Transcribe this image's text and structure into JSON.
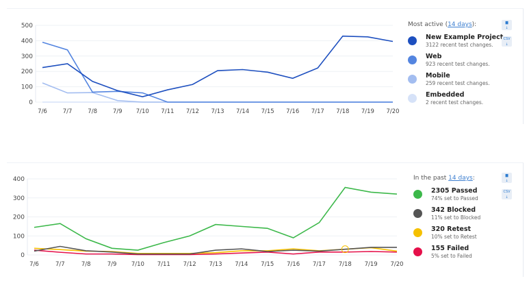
{
  "chart_data": [
    {
      "type": "line",
      "categories": [
        "7/6",
        "7/7",
        "7/8",
        "7/9",
        "7/10",
        "7/11",
        "7/12",
        "7/13",
        "7/14",
        "7/15",
        "7/16",
        "7/17",
        "7/18",
        "7/19",
        "7/20"
      ],
      "ylim": [
        0,
        500
      ],
      "yticks": [
        "0",
        "100",
        "200",
        "300",
        "400",
        "500"
      ],
      "series": [
        {
          "name": "New Example Project",
          "color": "#1d4fbf",
          "values": [
            225,
            250,
            135,
            75,
            35,
            80,
            115,
            205,
            212,
            195,
            155,
            222,
            430,
            425,
            395
          ]
        },
        {
          "name": "Web",
          "color": "#5485e0",
          "values": [
            390,
            340,
            65,
            70,
            60,
            0,
            0,
            0,
            0,
            0,
            0,
            0,
            0,
            0,
            0
          ]
        },
        {
          "name": "Mobile",
          "color": "#a3bdf0",
          "values": [
            125,
            60,
            62,
            10,
            0,
            0,
            0,
            0,
            0,
            0,
            0,
            0,
            0,
            0,
            0
          ]
        },
        {
          "name": "Embedded",
          "color": "#d6e2f8",
          "values": [
            0,
            0,
            0,
            0,
            0,
            0,
            0,
            0,
            0,
            0,
            0,
            0,
            0,
            0,
            0
          ]
        }
      ]
    },
    {
      "type": "line",
      "categories": [
        "7/6",
        "7/7",
        "7/8",
        "7/9",
        "7/10",
        "7/11",
        "7/12",
        "7/13",
        "7/14",
        "7/15",
        "7/16",
        "7/17",
        "7/18",
        "7/19",
        "7/20"
      ],
      "ylim": [
        0,
        400
      ],
      "yticks": [
        "0",
        "100",
        "200",
        "300",
        "400"
      ],
      "series": [
        {
          "name": "Passed",
          "color": "#3cb84a",
          "values": [
            145,
            165,
            85,
            35,
            25,
            65,
            100,
            160,
            150,
            140,
            90,
            170,
            355,
            330,
            320
          ]
        },
        {
          "name": "Blocked",
          "color": "#555555",
          "values": [
            20,
            45,
            22,
            15,
            5,
            5,
            5,
            25,
            32,
            18,
            25,
            20,
            30,
            40,
            40
          ]
        },
        {
          "name": "Retest",
          "color": "#f5c000",
          "values": [
            35,
            28,
            20,
            18,
            8,
            8,
            8,
            12,
            22,
            22,
            32,
            22,
            30,
            38,
            20
          ]
        },
        {
          "name": "Failed",
          "color": "#e5104a",
          "values": [
            25,
            14,
            5,
            5,
            2,
            2,
            2,
            5,
            10,
            15,
            5,
            15,
            15,
            18,
            15
          ]
        }
      ]
    }
  ],
  "legend1": {
    "prefix": "Most active (",
    "link": "14 days",
    "suffix": "):",
    "items": [
      {
        "name": "New Example Project",
        "sub": "3122 recent test changes."
      },
      {
        "name": "Web",
        "sub": "923 recent test changes."
      },
      {
        "name": "Mobile",
        "sub": "259 recent test changes."
      },
      {
        "name": "Embedded",
        "sub": "2 recent test changes."
      }
    ]
  },
  "legend2": {
    "prefix": "In the past ",
    "link": "14 days",
    "suffix": ":",
    "items": [
      {
        "name": "2305 Passed",
        "sub": "74% set to Passed"
      },
      {
        "name": "342 Blocked",
        "sub": "11% set to Blocked"
      },
      {
        "name": "320 Retest",
        "sub": "10% set to Retest"
      },
      {
        "name": "155 Failed",
        "sub": "5% set to Failed"
      }
    ]
  },
  "csv_label": "CSV"
}
